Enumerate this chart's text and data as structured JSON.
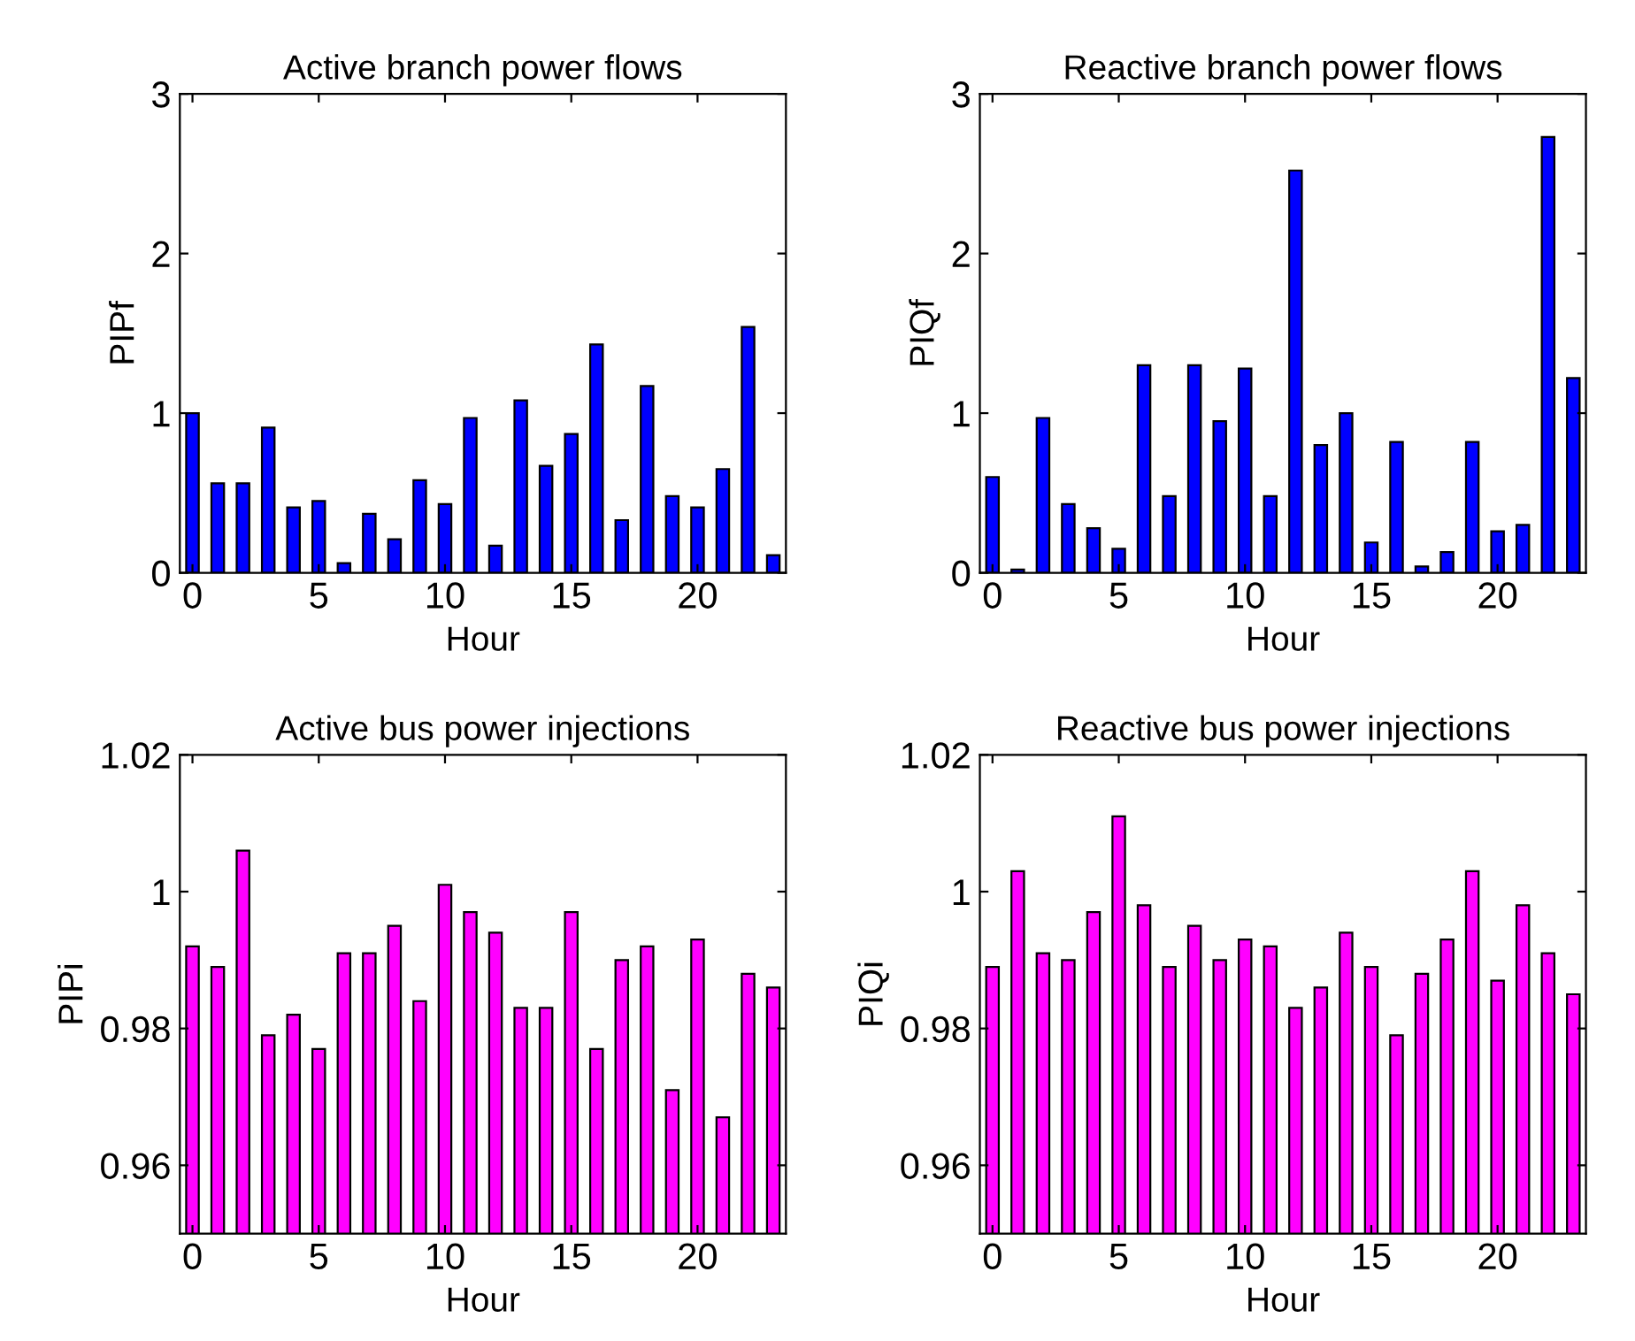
{
  "chart_data": [
    {
      "type": "bar",
      "title": "Active branch power flows",
      "xlabel": "Hour",
      "ylabel": "PIPf",
      "x": [
        0,
        1,
        2,
        3,
        4,
        5,
        6,
        7,
        8,
        9,
        10,
        11,
        12,
        13,
        14,
        15,
        16,
        17,
        18,
        19,
        20,
        21,
        22,
        23
      ],
      "color": "#0000ff",
      "values": [
        1.0,
        0.56,
        0.56,
        0.91,
        0.41,
        0.45,
        0.06,
        0.37,
        0.21,
        0.58,
        0.43,
        0.97,
        0.17,
        1.08,
        0.67,
        0.87,
        1.43,
        0.33,
        1.17,
        0.48,
        0.41,
        0.65,
        1.54,
        0.11
      ],
      "xlim": [
        -0.5,
        23.5
      ],
      "xticks": [
        0,
        5,
        10,
        15,
        20
      ],
      "ylim": [
        0,
        3
      ],
      "yticks": [
        0,
        1,
        2,
        3
      ],
      "grid": false
    },
    {
      "type": "bar",
      "title": "Reactive branch power flows",
      "xlabel": "Hour",
      "ylabel": "PIQf",
      "x": [
        0,
        1,
        2,
        3,
        4,
        5,
        6,
        7,
        8,
        9,
        10,
        11,
        12,
        13,
        14,
        15,
        16,
        17,
        18,
        19,
        20,
        21,
        22,
        23
      ],
      "color": "#0000ff",
      "values": [
        0.6,
        0.02,
        0.97,
        0.43,
        0.28,
        0.15,
        1.3,
        0.48,
        1.3,
        0.95,
        1.28,
        0.48,
        2.52,
        0.8,
        1.0,
        0.19,
        0.82,
        0.04,
        0.13,
        0.82,
        0.26,
        0.3,
        2.73,
        1.22
      ],
      "xlim": [
        -0.5,
        23.5
      ],
      "xticks": [
        0,
        5,
        10,
        15,
        20
      ],
      "ylim": [
        0,
        3
      ],
      "yticks": [
        0,
        1,
        2,
        3
      ],
      "grid": false
    },
    {
      "type": "bar",
      "title": "Active bus power injections",
      "xlabel": "Hour",
      "ylabel": "PIPi",
      "x": [
        0,
        1,
        2,
        3,
        4,
        5,
        6,
        7,
        8,
        9,
        10,
        11,
        12,
        13,
        14,
        15,
        16,
        17,
        18,
        19,
        20,
        21,
        22,
        23
      ],
      "color": "#ff00ff",
      "values": [
        0.992,
        0.989,
        1.006,
        0.979,
        0.982,
        0.977,
        0.991,
        0.991,
        0.995,
        0.984,
        1.001,
        0.997,
        0.994,
        0.983,
        0.983,
        0.997,
        0.977,
        0.99,
        0.992,
        0.971,
        0.993,
        0.967,
        0.988,
        0.986
      ],
      "xlim": [
        -0.5,
        23.5
      ],
      "xticks": [
        0,
        5,
        10,
        15,
        20
      ],
      "ylim": [
        0.95,
        1.02
      ],
      "yticks": [
        {
          "value": 0.96,
          "label": "0.96"
        },
        {
          "value": 0.98,
          "label": "0.98"
        },
        {
          "value": 1,
          "label": "1"
        },
        {
          "value": 1.02,
          "label": "1.02"
        }
      ],
      "grid": false
    },
    {
      "type": "bar",
      "title": "Reactive bus power injections",
      "xlabel": "Hour",
      "ylabel": "PIQi",
      "x": [
        0,
        1,
        2,
        3,
        4,
        5,
        6,
        7,
        8,
        9,
        10,
        11,
        12,
        13,
        14,
        15,
        16,
        17,
        18,
        19,
        20,
        21,
        22,
        23
      ],
      "color": "#ff00ff",
      "values": [
        0.989,
        1.003,
        0.991,
        0.99,
        0.997,
        1.011,
        0.998,
        0.989,
        0.995,
        0.99,
        0.993,
        0.992,
        0.983,
        0.986,
        0.994,
        0.989,
        0.979,
        0.988,
        0.993,
        1.003,
        0.987,
        0.998,
        0.991,
        0.985
      ],
      "xlim": [
        -0.5,
        23.5
      ],
      "xticks": [
        0,
        5,
        10,
        15,
        20
      ],
      "ylim": [
        0.95,
        1.02
      ],
      "yticks": [
        {
          "value": 0.96,
          "label": "0.96"
        },
        {
          "value": 0.98,
          "label": "0.98"
        },
        {
          "value": 1,
          "label": "1"
        },
        {
          "value": 1.02,
          "label": "1.02"
        }
      ],
      "grid": false
    }
  ]
}
